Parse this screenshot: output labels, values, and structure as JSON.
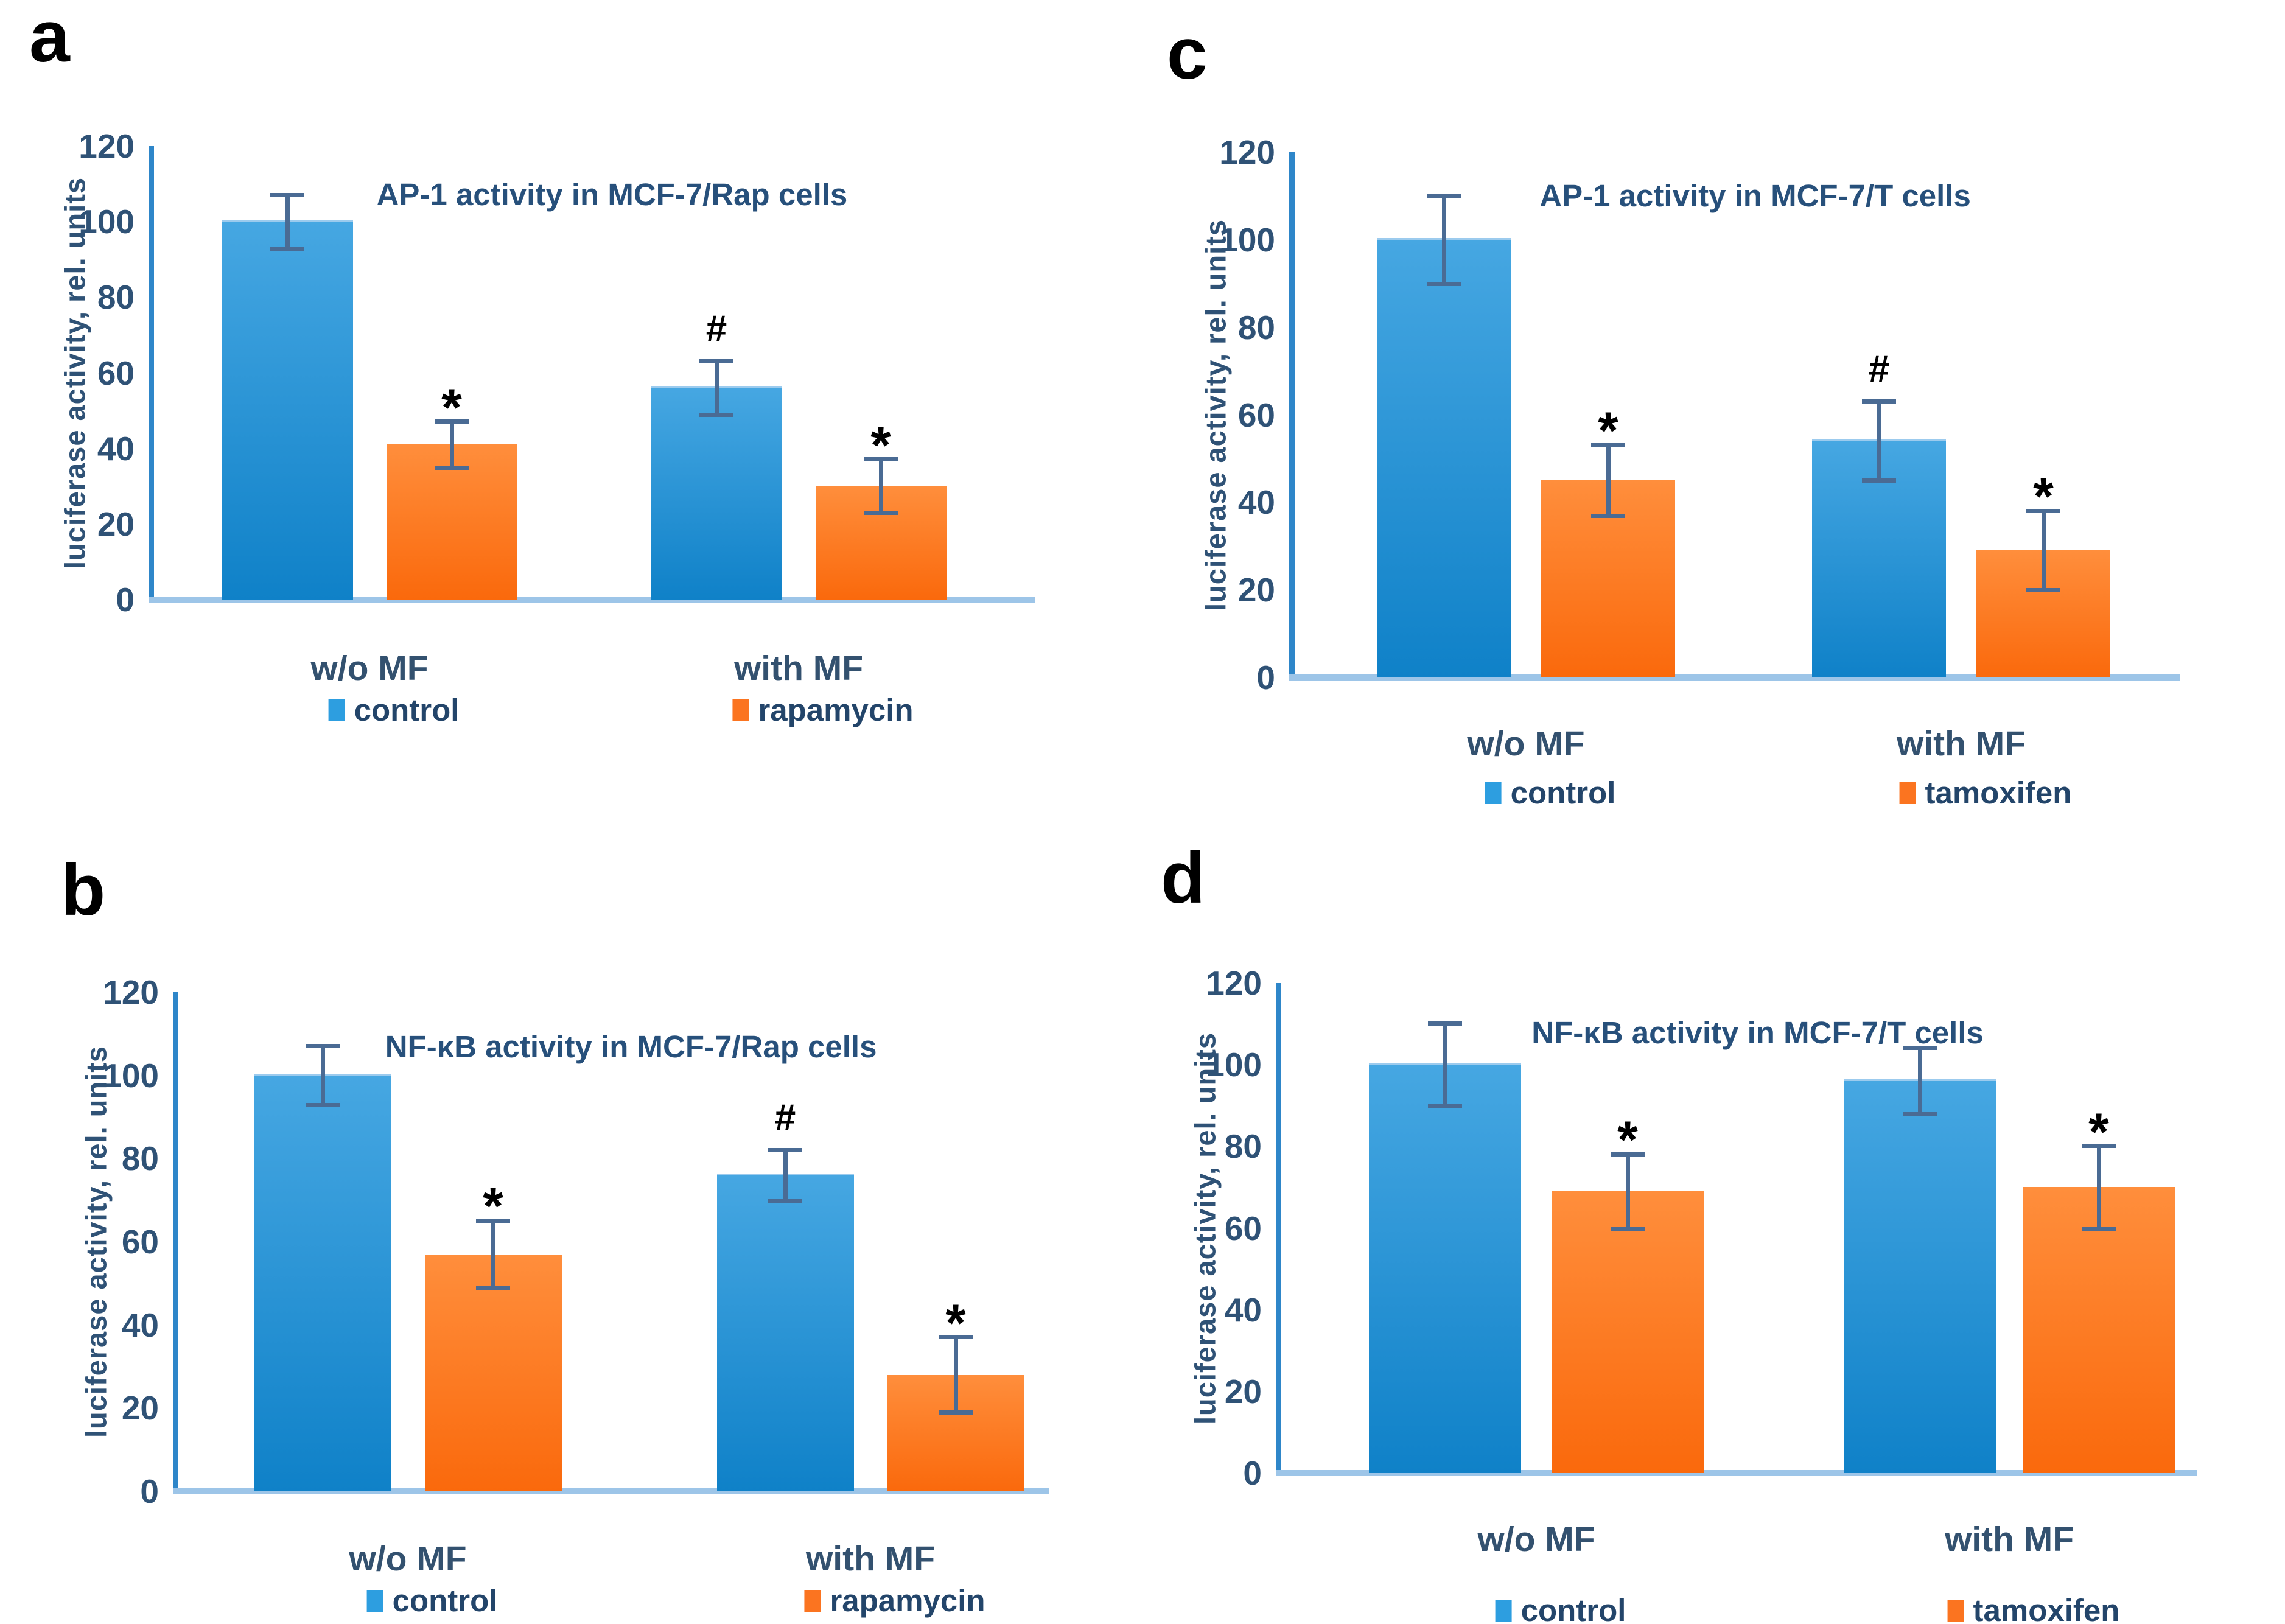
{
  "figure": {
    "background": "#FFFFFF",
    "colors": {
      "control_bar_top": "#46A7E2",
      "control_bar_bottom": "#0F81C8",
      "treatment_bar_top": "#FF8E3C",
      "treatment_bar_bottom": "#FA690C",
      "legend_control_swatch": "#2D9EE0",
      "legend_treatment_swatch": "#FB7420",
      "y_axis_line": "#2E86C9",
      "x_baseline": "#9DC5E8",
      "error_bar": "#4A6B94",
      "tick_label_text": "#2F5276",
      "title_text": "#27507B",
      "category_label_text": "#33516F",
      "legend_text": "#23456A",
      "panel_letter_text": "#000000"
    }
  },
  "chart_data": [
    {
      "panel": "a",
      "type": "bar",
      "title": "AP-1 activity in MCF-7/Rap cells",
      "ylabel": "luciferase activity, rel. units",
      "ylim": [
        0,
        120
      ],
      "yticks": [
        0,
        20,
        40,
        60,
        80,
        100,
        120
      ],
      "categories": [
        "w/o MF",
        "with MF"
      ],
      "grid": false,
      "legend_position": "bottom",
      "series": [
        {
          "name": "control",
          "values": [
            100,
            56
          ],
          "errors": [
            7,
            7
          ],
          "annotations": [
            "",
            "#"
          ]
        },
        {
          "name": "rapamycin",
          "values": [
            41,
            30
          ],
          "errors": [
            6,
            7
          ],
          "annotations": [
            "*",
            "*"
          ]
        }
      ]
    },
    {
      "panel": "b",
      "type": "bar",
      "title": "NF-κB activity in MCF-7/Rap cells",
      "ylabel": "luciferase activity, rel. units",
      "ylim": [
        0,
        120
      ],
      "yticks": [
        0,
        20,
        40,
        60,
        80,
        100,
        120
      ],
      "categories": [
        "w/o MF",
        "with MF"
      ],
      "grid": false,
      "legend_position": "bottom",
      "series": [
        {
          "name": "control",
          "values": [
            100,
            76
          ],
          "errors": [
            7,
            6
          ],
          "annotations": [
            "",
            "#"
          ]
        },
        {
          "name": "rapamycin",
          "values": [
            57,
            28
          ],
          "errors": [
            8,
            9
          ],
          "annotations": [
            "*",
            "*"
          ]
        }
      ]
    },
    {
      "panel": "c",
      "type": "bar",
      "title": "AP-1 activity in MCF-7/T cells",
      "ylabel": "luciferase activity, rel. units",
      "ylim": [
        0,
        120
      ],
      "yticks": [
        0,
        20,
        40,
        60,
        80,
        100,
        120
      ],
      "categories": [
        "w/o MF",
        "with MF"
      ],
      "grid": false,
      "legend_position": "bottom",
      "series": [
        {
          "name": "control",
          "values": [
            100,
            54
          ],
          "errors": [
            10,
            9
          ],
          "annotations": [
            "",
            "#"
          ]
        },
        {
          "name": "tamoxifen",
          "values": [
            45,
            29
          ],
          "errors": [
            8,
            9
          ],
          "annotations": [
            "*",
            "*"
          ]
        }
      ]
    },
    {
      "panel": "d",
      "type": "bar",
      "title": "NF-κB activity in MCF-7/T cells",
      "ylabel": "luciferase activity, rel. units",
      "ylim": [
        0,
        120
      ],
      "yticks": [
        0,
        20,
        40,
        60,
        80,
        100,
        120
      ],
      "categories": [
        "w/o MF",
        "with MF"
      ],
      "grid": false,
      "legend_position": "bottom",
      "series": [
        {
          "name": "control",
          "values": [
            100,
            96
          ],
          "errors": [
            10,
            8
          ],
          "annotations": [
            "",
            ""
          ]
        },
        {
          "name": "tamoxifen",
          "values": [
            69,
            70
          ],
          "errors": [
            9,
            10
          ],
          "annotations": [
            "*",
            "*"
          ]
        }
      ]
    }
  ]
}
